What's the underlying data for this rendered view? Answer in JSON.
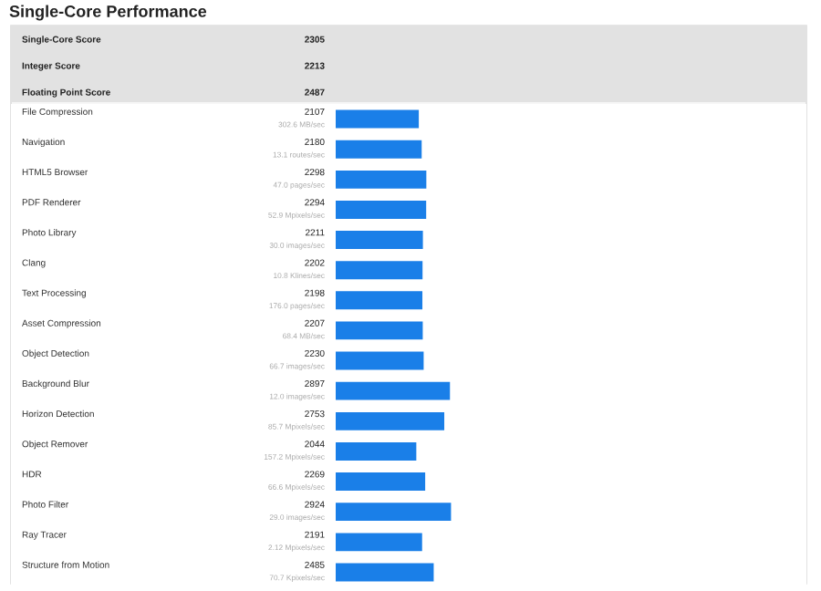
{
  "chart_data": {
    "type": "bar",
    "orientation": "horizontal",
    "title": "Single-Core Performance",
    "categories": [
      "File Compression",
      "Navigation",
      "HTML5 Browser",
      "PDF Renderer",
      "Photo Library",
      "Clang",
      "Text Processing",
      "Asset Compression",
      "Object Detection",
      "Background Blur",
      "Horizon Detection",
      "Object Remover",
      "HDR",
      "Photo Filter",
      "Ray Tracer",
      "Structure from Motion"
    ],
    "values": [
      2107,
      2180,
      2298,
      2294,
      2211,
      2202,
      2198,
      2207,
      2230,
      2897,
      2753,
      2044,
      2269,
      2924,
      2191,
      2485
    ],
    "color": "#1a7fe8",
    "data_labels": true,
    "annotations": [
      "Single-Core Score",
      "2305",
      "Integer Score",
      "2213",
      "Floating Point Score",
      "2487",
      "302.6 MB/sec",
      "13.1 routes/sec",
      "47.0 pages/sec",
      "52.9 Mpixels/sec",
      "30.0 images/sec",
      "10.8 Klines/sec",
      "176.0 pages/sec",
      "68.4 MB/sec",
      "66.7 images/sec",
      "12.0 images/sec",
      "85.7 Mpixels/sec",
      "157.2 Mpixels/sec",
      "66.6 Mpixels/sec",
      "29.0 images/sec",
      "2.12 Mpixels/sec",
      "70.7 Kpixels/sec"
    ]
  }
}
